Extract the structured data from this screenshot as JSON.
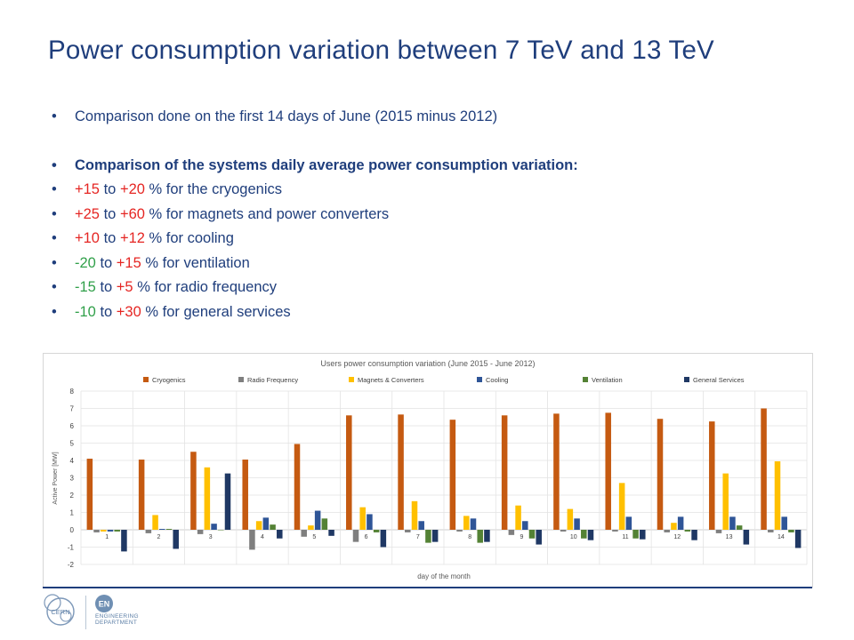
{
  "slide": {
    "title": "Power consumption variation between 7 TeV and 13 TeV"
  },
  "bullets": {
    "b1": "Comparison done on the first 14 days of June (2015 minus 2012)",
    "b2": "Comparison of the systems daily average power consumption variation:",
    "cryo": {
      "lo": "+15",
      "to": " to ",
      "hi": "+20",
      "rest": " % for the cryogenics"
    },
    "magnets": {
      "lo": "+25",
      "to": " to ",
      "hi": "+60",
      "rest": " % for magnets and power converters"
    },
    "cooling": {
      "lo": "+10",
      "to": " to ",
      "hi": "+12",
      "rest": " % for cooling"
    },
    "ventilation": {
      "lo": "-20",
      "to": " to ",
      "hi": "+15",
      "rest": " % for ventilation"
    },
    "radio": {
      "lo": "-15",
      "to": " to ",
      "hi": "+5",
      "rest": " % for radio frequency"
    },
    "general": {
      "lo": "-10",
      "to": " to ",
      "hi": "+30",
      "rest": " % for general services"
    }
  },
  "colors": {
    "title": "#1f3e7c",
    "positive": "#e52623",
    "negative": "#31a04a"
  },
  "logos": {
    "cern": "CERN",
    "en_badge": "EN",
    "en_line1": "ENGINEERING",
    "en_line2": "DEPARTMENT"
  },
  "chart_data": {
    "type": "bar",
    "title": "Users power consumption variation (June 2015 - June 2012)",
    "xlabel": "day of the month",
    "ylabel": "Active Power [MW]",
    "ylim": [
      -2,
      8
    ],
    "yticks": [
      -2,
      -1,
      0,
      1,
      2,
      3,
      4,
      5,
      6,
      7,
      8
    ],
    "categories": [
      "1",
      "2",
      "3",
      "4",
      "5",
      "6",
      "7",
      "8",
      "9",
      "10",
      "11",
      "12",
      "13",
      "14"
    ],
    "legend_position": "top",
    "grid": true,
    "series": [
      {
        "name": "Cryogenics",
        "color": "#c55a11",
        "values": [
          4.1,
          4.05,
          4.5,
          4.05,
          4.95,
          6.6,
          6.65,
          6.35,
          6.6,
          6.7,
          6.75,
          6.4,
          6.25,
          7.0
        ]
      },
      {
        "name": "Radio Frequency",
        "color": "#7f7f7f",
        "values": [
          -0.15,
          -0.2,
          -0.25,
          -1.15,
          -0.4,
          -0.7,
          -0.15,
          -0.1,
          -0.3,
          -0.1,
          -0.1,
          -0.15,
          -0.2,
          -0.15
        ]
      },
      {
        "name": "Magnets & Converters",
        "color": "#ffc000",
        "values": [
          -0.1,
          0.85,
          3.6,
          0.5,
          0.25,
          1.3,
          1.65,
          0.8,
          1.4,
          1.2,
          2.7,
          0.4,
          3.25,
          3.95
        ]
      },
      {
        "name": "Cooling",
        "color": "#2f5597",
        "values": [
          -0.1,
          0.05,
          0.35,
          0.7,
          1.1,
          0.9,
          0.5,
          0.65,
          0.5,
          0.65,
          0.75,
          0.75,
          0.75,
          0.75
        ]
      },
      {
        "name": "Ventilation",
        "color": "#548235",
        "values": [
          -0.1,
          0.05,
          0.0,
          0.3,
          0.65,
          -0.15,
          -0.75,
          -0.75,
          -0.5,
          -0.5,
          -0.5,
          -0.1,
          0.25,
          -0.15
        ]
      },
      {
        "name": "General Services",
        "color": "#1f3864",
        "values": [
          -1.25,
          -1.1,
          3.25,
          -0.5,
          -0.35,
          -1.0,
          -0.7,
          -0.7,
          -0.85,
          -0.6,
          -0.55,
          -0.6,
          -0.85,
          -1.05
        ]
      }
    ]
  }
}
